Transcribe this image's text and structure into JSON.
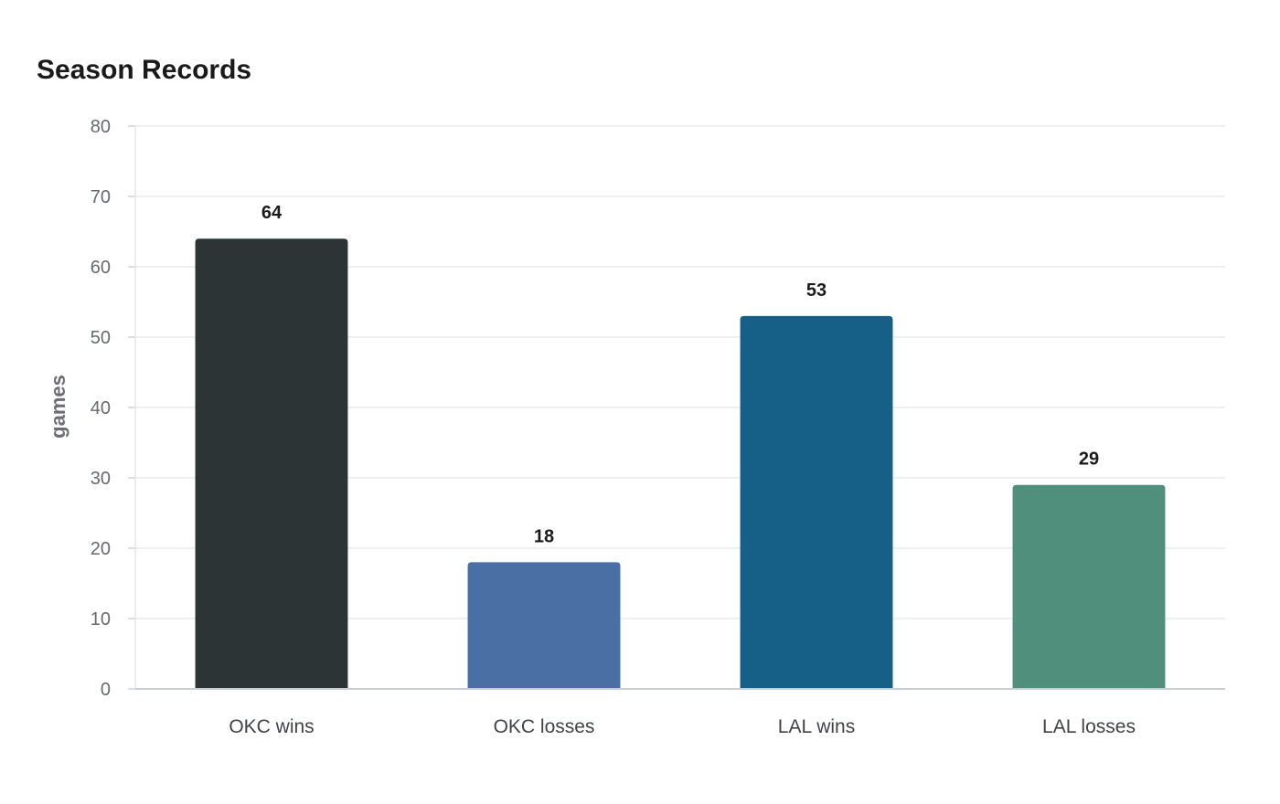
{
  "chart_data": {
    "type": "bar",
    "title": "Season Records",
    "xlabel": "",
    "ylabel": "games",
    "categories": [
      "OKC wins",
      "OKC losses",
      "LAL wins",
      "LAL losses"
    ],
    "values": [
      64,
      18,
      53,
      29
    ],
    "colors": [
      "#2d3436",
      "#4a6fa5",
      "#166088",
      "#4f8f7c"
    ],
    "ylim": [
      0,
      80
    ],
    "yticks": [
      0,
      10,
      20,
      30,
      40,
      50,
      60,
      70,
      80
    ],
    "grid": true,
    "legend": "none"
  }
}
